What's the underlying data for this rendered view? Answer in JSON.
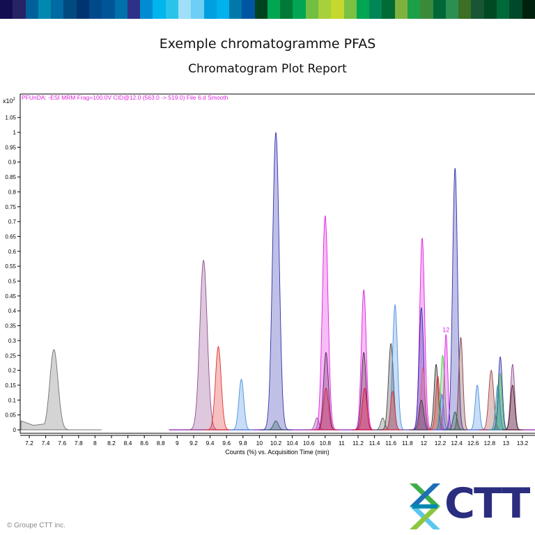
{
  "header": {
    "stripe_colors": [
      "#130d52",
      "#272465",
      "#00609a",
      "#0089b0",
      "#006aa3",
      "#004a7f",
      "#003471",
      "#014a8a",
      "#005599",
      "#0071aa",
      "#2e3187",
      "#008cd2",
      "#00b4ec",
      "#2ac4ea",
      "#9fdff8",
      "#6dcff6",
      "#009fe0",
      "#00b1ec",
      "#0079aa",
      "#0055a3",
      "#00441f",
      "#00a650",
      "#007a36",
      "#00a651",
      "#72bf44",
      "#a8cf3c",
      "#c5d82e",
      "#7ac143",
      "#00a651",
      "#008557",
      "#006b35",
      "#7fb13d",
      "#1d9f48",
      "#3a8a3a",
      "#006838",
      "#2b8f52",
      "#3c6e24",
      "#175535",
      "#004a23",
      "#00693a",
      "#00482a",
      "#00210b"
    ],
    "title": "Exemple chromatogramme PFAS",
    "subtitle": "Chromatogram Plot Report"
  },
  "chart_data": {
    "type": "area",
    "trace_label": "PFUnDA: -ESI MRM Frag=100.0V CID@12.0 (563.0 -> 519.0) File 6.d  Smooth",
    "y_multiplier": "x10",
    "y_multiplier_exp": "2",
    "xlabel": "Counts (%) vs. Acquisition Time (min)",
    "xlim": [
      7.1,
      13.35
    ],
    "ylim": [
      0,
      1.1
    ],
    "x_ticks": [
      "7.2",
      "7.4",
      "7.6",
      "7.8",
      "8",
      "8.2",
      "8.4",
      "8.6",
      "8.8",
      "9",
      "9.2",
      "9.4",
      "9.6",
      "9.8",
      "10",
      "10.2",
      "10.4",
      "10.6",
      "10.8",
      "11",
      "11.2",
      "11.4",
      "11.6",
      "11.8",
      "12",
      "12.2",
      "12.4",
      "12.6",
      "12.8",
      "13",
      "13.2"
    ],
    "y_ticks": [
      "0",
      "0.05",
      "0.1",
      "0.15",
      "0.2",
      "0.25",
      "0.3",
      "0.35",
      "0.4",
      "0.45",
      "0.5",
      "0.55",
      "0.6",
      "0.65",
      "0.7",
      "0.75",
      "0.8",
      "0.85",
      "0.9",
      "0.95",
      "1",
      "1.05"
    ],
    "annotation": {
      "text": "12",
      "x": 12.27,
      "y": 0.32
    },
    "peaks": [
      {
        "rt": 7.5,
        "height": 0.27,
        "width": 0.05,
        "color": "#707070"
      },
      {
        "rt": 9.32,
        "height": 0.57,
        "width": 0.045,
        "color": "#904a90"
      },
      {
        "rt": 9.5,
        "height": 0.28,
        "width": 0.035,
        "color": "#e03030"
      },
      {
        "rt": 9.78,
        "height": 0.17,
        "width": 0.03,
        "color": "#4a90e0"
      },
      {
        "rt": 10.2,
        "height": 1.0,
        "width": 0.04,
        "color": "#3030b0"
      },
      {
        "rt": 10.2,
        "height": 0.03,
        "width": 0.03,
        "color": "#306060"
      },
      {
        "rt": 10.7,
        "height": 0.04,
        "width": 0.025,
        "color": "#904a90"
      },
      {
        "rt": 10.8,
        "height": 0.72,
        "width": 0.035,
        "color": "#e020e0"
      },
      {
        "rt": 10.81,
        "height": 0.26,
        "width": 0.03,
        "color": "#602060"
      },
      {
        "rt": 10.81,
        "height": 0.14,
        "width": 0.03,
        "color": "#d02040"
      },
      {
        "rt": 11.27,
        "height": 0.47,
        "width": 0.03,
        "color": "#e020e0"
      },
      {
        "rt": 11.27,
        "height": 0.26,
        "width": 0.028,
        "color": "#502040"
      },
      {
        "rt": 11.28,
        "height": 0.14,
        "width": 0.028,
        "color": "#e01030"
      },
      {
        "rt": 11.5,
        "height": 0.04,
        "width": 0.025,
        "color": "#606060"
      },
      {
        "rt": 11.6,
        "height": 0.29,
        "width": 0.03,
        "color": "#404040"
      },
      {
        "rt": 11.65,
        "height": 0.42,
        "width": 0.03,
        "color": "#4a90e0"
      },
      {
        "rt": 11.62,
        "height": 0.13,
        "width": 0.025,
        "color": "#e03030"
      },
      {
        "rt": 11.98,
        "height": 0.645,
        "width": 0.03,
        "color": "#e020e0"
      },
      {
        "rt": 11.97,
        "height": 0.41,
        "width": 0.028,
        "color": "#3030b0"
      },
      {
        "rt": 11.99,
        "height": 0.21,
        "width": 0.025,
        "color": "#e06080"
      },
      {
        "rt": 11.97,
        "height": 0.1,
        "width": 0.028,
        "color": "#404040"
      },
      {
        "rt": 12.15,
        "height": 0.22,
        "width": 0.025,
        "color": "#303030"
      },
      {
        "rt": 12.17,
        "height": 0.18,
        "width": 0.025,
        "color": "#e03030"
      },
      {
        "rt": 12.23,
        "height": 0.25,
        "width": 0.025,
        "color": "#40c040"
      },
      {
        "rt": 12.27,
        "height": 0.32,
        "width": 0.022,
        "color": "#e020e0"
      },
      {
        "rt": 12.22,
        "height": 0.12,
        "width": 0.022,
        "color": "#4a70e0"
      },
      {
        "rt": 12.38,
        "height": 0.88,
        "width": 0.03,
        "color": "#3030b0"
      },
      {
        "rt": 12.45,
        "height": 0.31,
        "width": 0.025,
        "color": "#804040"
      },
      {
        "rt": 12.38,
        "height": 0.06,
        "width": 0.025,
        "color": "#206040"
      },
      {
        "rt": 12.65,
        "height": 0.15,
        "width": 0.025,
        "color": "#4a90e0"
      },
      {
        "rt": 12.82,
        "height": 0.2,
        "width": 0.03,
        "color": "#a04040"
      },
      {
        "rt": 12.93,
        "height": 0.245,
        "width": 0.025,
        "color": "#3030b0"
      },
      {
        "rt": 12.93,
        "height": 0.19,
        "width": 0.022,
        "color": "#40c040"
      },
      {
        "rt": 12.9,
        "height": 0.15,
        "width": 0.025,
        "color": "#2090a0"
      },
      {
        "rt": 13.08,
        "height": 0.22,
        "width": 0.025,
        "color": "#904a90"
      },
      {
        "rt": 13.08,
        "height": 0.15,
        "width": 0.025,
        "color": "#502020"
      }
    ]
  },
  "footer": {
    "copyright": "© Groupe CTT inc."
  },
  "logo": {
    "text": "CTT",
    "color": "#2b2d7f"
  }
}
